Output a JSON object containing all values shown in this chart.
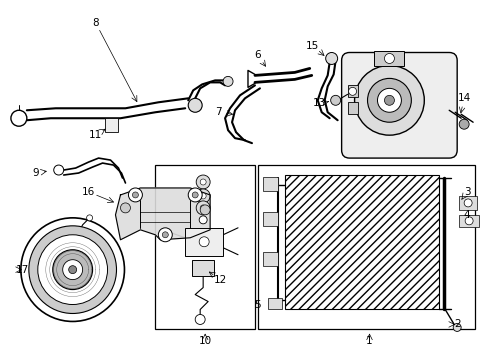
{
  "bg": "#ffffff",
  "lc": "#000000",
  "gray": "#888888",
  "lgray": "#cccccc",
  "fs": 7.5,
  "figsize": [
    4.89,
    3.6
  ],
  "dpi": 100
}
